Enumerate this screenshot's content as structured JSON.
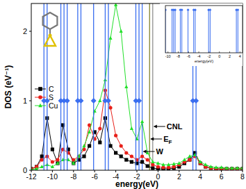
{
  "chart_data": [
    {
      "type": "line",
      "x_label": "energy(eV)",
      "y_label": "DOS (eV⁻¹)",
      "xlim": [
        -12,
        8
      ],
      "xticks": [
        -12,
        -10,
        -8,
        -6,
        -4,
        -2,
        0,
        2,
        4,
        6,
        8
      ],
      "ylim": [
        0,
        2.4
      ],
      "yticks": [
        0,
        1,
        2
      ],
      "legend": "upper left",
      "x": [
        -12,
        -11.5,
        -11,
        -10.5,
        -10,
        -9.5,
        -9,
        -8.5,
        -8,
        -7.5,
        -7,
        -6.5,
        -6,
        -5.5,
        -5,
        -4.5,
        -4,
        -3.5,
        -3,
        -2.5,
        -2,
        -1.5,
        -1,
        -0.5,
        0,
        0.5,
        1,
        1.5,
        2,
        2.5,
        3,
        3.5,
        4,
        4.5,
        5,
        5.5,
        6,
        6.5,
        7,
        7.5,
        8
      ],
      "series": [
        {
          "name": "C",
          "color": "#000000",
          "marker": "square",
          "values": [
            0.02,
            0.05,
            0.2,
            0.75,
            0.3,
            0.1,
            0.65,
            0.3,
            0.1,
            0.15,
            0.2,
            0.35,
            0.55,
            0.4,
            0.75,
            0.35,
            0.25,
            0.2,
            0.15,
            0.12,
            0.1,
            0.12,
            0.06,
            0.03,
            0.02,
            0.02,
            0.02,
            0.03,
            0.05,
            0.1,
            0.15,
            0.25,
            0.1,
            0.05,
            0.03,
            0.02,
            0.02,
            0.02,
            0.02,
            0.02,
            0.02
          ]
        },
        {
          "name": "S",
          "color": "#e8201a",
          "marker": "circle",
          "values": [
            0.02,
            0.05,
            0.15,
            0.2,
            0.12,
            0.15,
            0.3,
            0.25,
            0.15,
            0.2,
            0.3,
            0.65,
            0.45,
            0.6,
            1.15,
            0.9,
            0.5,
            0.35,
            0.25,
            0.2,
            0.15,
            0.2,
            0.15,
            0.08,
            0.05,
            0.04,
            0.04,
            0.05,
            0.08,
            0.12,
            0.15,
            0.2,
            0.1,
            0.05,
            0.03,
            0.02,
            0.02,
            0.02,
            0.02,
            0.02,
            0.02
          ]
        },
        {
          "name": "Cu",
          "color": "#22e02a",
          "marker": "triangle",
          "values": [
            0.01,
            0.02,
            0.05,
            0.08,
            0.05,
            0.1,
            0.15,
            0.15,
            0.1,
            0.2,
            0.35,
            0.55,
            0.85,
            1.0,
            1.3,
            1.9,
            2.38,
            2.0,
            1.2,
            0.6,
            0.45,
            0.7,
            0.25,
            0.12,
            0.1,
            0.08,
            0.08,
            0.09,
            0.1,
            0.15,
            0.2,
            0.22,
            0.12,
            0.08,
            0.05,
            0.04,
            0.04,
            0.03,
            0.03,
            0.03,
            0.03
          ]
        },
        {
          "type": "stick",
          "color": "#3a6ef0",
          "marker": "diamond",
          "x": [
            -10.8,
            -10.5,
            -9.2,
            -8.9,
            -8.6,
            -7.6,
            -7.3,
            -6.1,
            -5.0,
            -4.7,
            -2.1,
            -1.8,
            3.3,
            3.6
          ],
          "values": [
            1,
            1,
            1,
            1,
            1,
            1,
            1,
            1,
            1,
            1,
            1,
            1,
            1,
            1
          ]
        }
      ],
      "annotations": [
        {
          "label": "CNL",
          "x": -0.5,
          "color": "#888888"
        },
        {
          "label": "E",
          "subscript": "F",
          "x": -0.8,
          "color": "#7a7a20"
        },
        {
          "label": "W",
          "x": -1.5,
          "color": "#3a6ef0"
        }
      ]
    },
    {
      "type": "stick",
      "x_label": "energy(eV)",
      "xlim": [
        -10.5,
        4.5
      ],
      "xticks": [
        -10,
        -8,
        -6,
        -4,
        -2,
        0,
        2,
        4
      ],
      "ylim": [
        0,
        1.1
      ],
      "tick_labels": "x",
      "series": [
        {
          "color": "#3a6ef0",
          "marker": "diamond",
          "x": [
            -10.8,
            -10.5,
            -9.2,
            -8.9,
            -8.6,
            -7.6,
            -7.3,
            -6.1,
            -5.0,
            -4.7,
            -2.1,
            -1.8,
            3.3,
            3.6
          ],
          "values": [
            1,
            1,
            1,
            1,
            1,
            1,
            1,
            1,
            1,
            1,
            1,
            1,
            1,
            1
          ]
        }
      ]
    }
  ]
}
